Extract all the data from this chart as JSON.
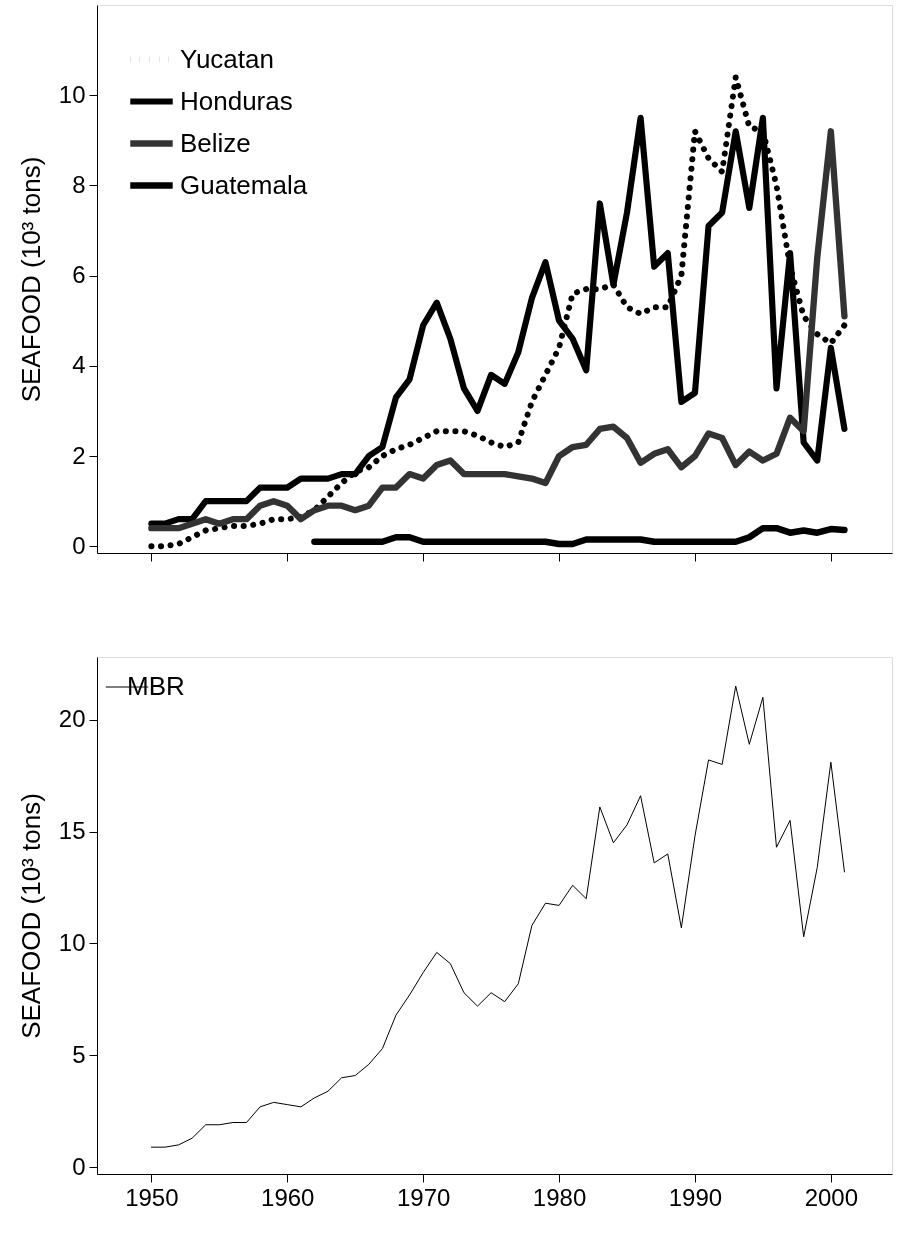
{
  "chart_data": [
    {
      "type": "line",
      "ylabel": "SEAFOOD (10³ tons)",
      "xlim": [
        1946,
        2004.5
      ],
      "ylim": [
        -0.15,
        12
      ],
      "xticks": [
        1950,
        1960,
        1970,
        1980,
        1990,
        2000
      ],
      "yticks": [
        0,
        2,
        4,
        6,
        8,
        10
      ],
      "tick_labels": "y",
      "legend": "top left",
      "grid": false,
      "x": [
        1950,
        1951,
        1952,
        1953,
        1954,
        1955,
        1956,
        1957,
        1958,
        1959,
        1960,
        1961,
        1962,
        1963,
        1964,
        1965,
        1966,
        1967,
        1968,
        1969,
        1970,
        1971,
        1972,
        1973,
        1974,
        1975,
        1976,
        1977,
        1978,
        1979,
        1980,
        1981,
        1982,
        1983,
        1984,
        1985,
        1986,
        1987,
        1988,
        1989,
        1990,
        1991,
        1992,
        1993,
        1994,
        1995,
        1996,
        1997,
        1998,
        1999,
        2000,
        2001
      ],
      "series": [
        {
          "name": "Yucatan",
          "color": "#000000",
          "line_style": "dotted",
          "values": [
            0,
            0,
            0.05,
            0.2,
            0.35,
            0.4,
            0.45,
            0.45,
            0.5,
            0.6,
            0.6,
            0.65,
            0.8,
            1.1,
            1.4,
            1.65,
            1.75,
            2.0,
            2.15,
            2.25,
            2.4,
            2.55,
            2.55,
            2.55,
            2.45,
            2.3,
            2.2,
            2.3,
            3.2,
            3.8,
            4.4,
            5.6,
            5.7,
            5.7,
            5.8,
            5.3,
            5.15,
            5.3,
            5.3,
            6.0,
            9.2,
            8.6,
            8.3,
            10.4,
            9.3,
            9.2,
            8.0,
            6.2,
            5.1,
            4.7,
            4.5,
            4.9
          ]
        },
        {
          "name": "Honduras",
          "color": "#000000",
          "line_style": "solid",
          "values": [
            0.5,
            0.5,
            0.6,
            0.6,
            1.0,
            1.0,
            1.0,
            1.0,
            1.3,
            1.3,
            1.3,
            1.5,
            1.5,
            1.5,
            1.6,
            1.6,
            2.0,
            2.2,
            3.3,
            3.7,
            4.9,
            5.4,
            4.6,
            3.5,
            3.0,
            3.8,
            3.6,
            4.3,
            5.5,
            6.3,
            5.0,
            4.6,
            3.9,
            7.6,
            5.8,
            7.4,
            9.5,
            6.2,
            6.5,
            3.2,
            3.4,
            7.1,
            7.4,
            9.2,
            7.5,
            9.5,
            3.5,
            6.5,
            2.3,
            1.9,
            4.4,
            2.6
          ]
        },
        {
          "name": "Belize",
          "color": "#333333",
          "line_style": "solid",
          "values": [
            0.4,
            0.4,
            0.4,
            0.5,
            0.6,
            0.5,
            0.6,
            0.6,
            0.9,
            1.0,
            0.9,
            0.6,
            0.8,
            0.9,
            0.9,
            0.8,
            0.9,
            1.3,
            1.3,
            1.6,
            1.5,
            1.8,
            1.9,
            1.6,
            1.6,
            1.6,
            1.6,
            1.55,
            1.5,
            1.4,
            2.0,
            2.2,
            2.25,
            2.6,
            2.65,
            2.4,
            1.85,
            2.05,
            2.15,
            1.75,
            2.0,
            2.5,
            2.4,
            1.8,
            2.1,
            1.9,
            2.05,
            2.85,
            2.55,
            6.4,
            9.2,
            5.1
          ]
        },
        {
          "name": "Guatemala",
          "color": "#000000",
          "line_style": "solid",
          "x": [
            1962,
            1963,
            1964,
            1965,
            1966,
            1967,
            1968,
            1969,
            1970,
            1971,
            1972,
            1973,
            1974,
            1975,
            1976,
            1977,
            1978,
            1979,
            1980,
            1981,
            1982,
            1983,
            1984,
            1985,
            1986,
            1987,
            1988,
            1989,
            1990,
            1991,
            1992,
            1993,
            1994,
            1995,
            1996,
            1997,
            1998,
            1999,
            2000,
            2001
          ],
          "values": [
            0.1,
            0.1,
            0.1,
            0.1,
            0.1,
            0.1,
            0.2,
            0.2,
            0.1,
            0.1,
            0.1,
            0.1,
            0.1,
            0.1,
            0.1,
            0.1,
            0.1,
            0.1,
            0.05,
            0.05,
            0.15,
            0.15,
            0.15,
            0.15,
            0.15,
            0.1,
            0.1,
            0.1,
            0.1,
            0.1,
            0.1,
            0.1,
            0.2,
            0.4,
            0.4,
            0.3,
            0.35,
            0.3,
            0.38,
            0.36
          ]
        }
      ]
    },
    {
      "type": "line",
      "ylabel": "SEAFOOD (10³ tons)",
      "xlim": [
        1946,
        2004.5
      ],
      "ylim": [
        -0.3,
        22.8
      ],
      "xticks": [
        1950,
        1960,
        1970,
        1980,
        1990,
        2000
      ],
      "yticks": [
        0,
        5,
        10,
        15,
        20
      ],
      "legend": "top left",
      "grid": false,
      "x": [
        1950,
        1951,
        1952,
        1953,
        1954,
        1955,
        1956,
        1957,
        1958,
        1959,
        1960,
        1961,
        1962,
        1963,
        1964,
        1965,
        1966,
        1967,
        1968,
        1969,
        1970,
        1971,
        1972,
        1973,
        1974,
        1975,
        1976,
        1977,
        1978,
        1979,
        1980,
        1981,
        1982,
        1983,
        1984,
        1985,
        1986,
        1987,
        1988,
        1989,
        1990,
        1991,
        1992,
        1993,
        1994,
        1995,
        1996,
        1997,
        1998,
        1999,
        2000,
        2001
      ],
      "series": [
        {
          "name": "MBR",
          "color": "#000000",
          "line_style": "solid",
          "values": [
            0.9,
            0.9,
            1.0,
            1.3,
            1.9,
            1.9,
            2.0,
            2.0,
            2.7,
            2.9,
            2.8,
            2.7,
            3.1,
            3.4,
            4.0,
            4.1,
            4.6,
            5.3,
            6.8,
            7.7,
            8.7,
            9.6,
            9.1,
            7.8,
            7.2,
            7.8,
            7.4,
            8.2,
            10.8,
            11.8,
            11.7,
            12.6,
            12.0,
            16.1,
            14.5,
            15.3,
            16.6,
            13.6,
            14.0,
            10.7,
            14.8,
            18.2,
            18.0,
            21.5,
            18.9,
            21.0,
            14.3,
            15.5,
            10.3,
            13.4,
            18.1,
            13.2
          ]
        }
      ]
    }
  ]
}
